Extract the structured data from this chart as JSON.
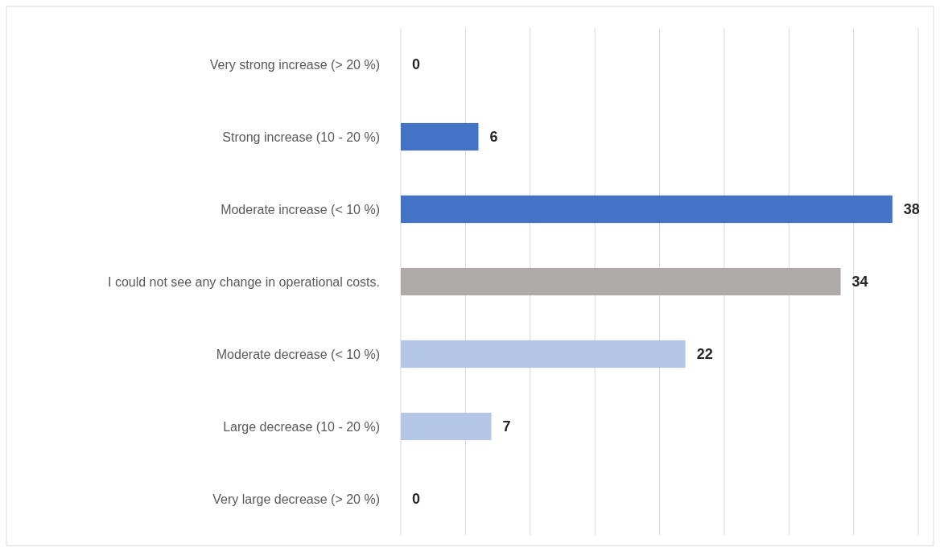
{
  "chart_data": {
    "type": "bar",
    "orientation": "horizontal",
    "categories": [
      "Very strong increase (> 20 %)",
      "Strong increase (10 - 20 %)",
      "Moderate increase (< 10 %)",
      "I could not see any change in operational costs.",
      "Moderate decrease (< 10 %)",
      "Large decrease (10 - 20 %)",
      "Very large decrease (> 20 %)"
    ],
    "values": [
      0,
      6,
      38,
      34,
      22,
      7,
      0
    ],
    "colors": [
      "#4472c4",
      "#4472c4",
      "#4472c4",
      "#aeaaaa",
      "#b4c7e7",
      "#b4c7e7",
      "#b4c7e7"
    ],
    "xlim": [
      0,
      40
    ],
    "xticks": [
      {
        "value": 0,
        "label": null
      },
      {
        "value": 5,
        "label": null
      },
      {
        "value": 10,
        "label": null
      },
      {
        "value": 15,
        "label": null
      },
      {
        "value": 20,
        "label": null
      },
      {
        "value": 25,
        "label": null
      },
      {
        "value": 30,
        "label": null
      },
      {
        "value": 35,
        "label": null
      },
      {
        "value": 40,
        "label": null
      }
    ],
    "grid": "x",
    "tick_labels": "y",
    "data_labels": true
  }
}
